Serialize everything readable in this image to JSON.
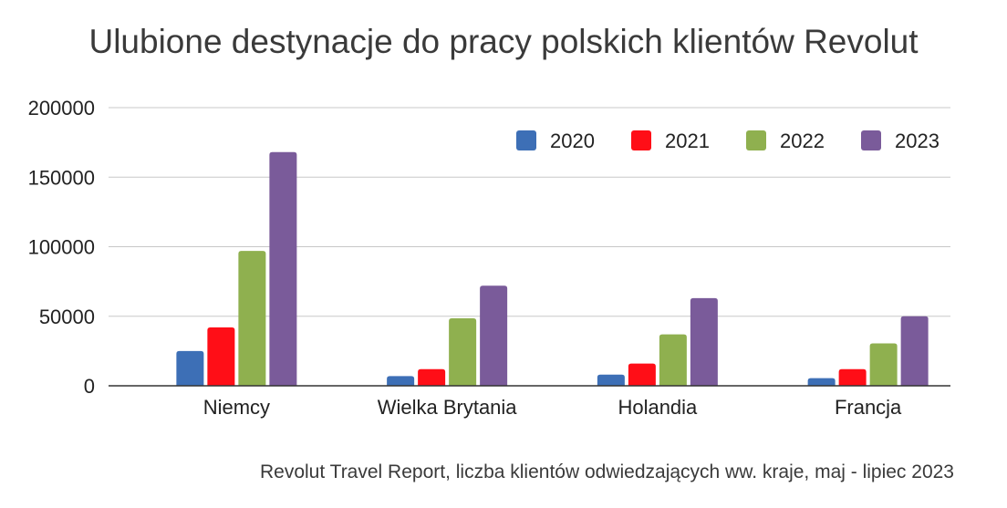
{
  "chart_data": {
    "type": "bar",
    "title": "Ulubione destynacje do pracy polskich klientów Revolut",
    "subtitle": "Revolut Travel Report, liczba klientów odwiedzających ww. kraje, maj - lipiec 2023",
    "xlabel": "",
    "ylabel": "",
    "categories": [
      "Niemcy",
      "Wielka Brytania",
      "Holandia",
      "Francja"
    ],
    "series": [
      {
        "name": "2020",
        "color": "#3d6fb6",
        "values": [
          25000,
          7000,
          8000,
          5500
        ]
      },
      {
        "name": "2021",
        "color": "#ff0e17",
        "values": [
          42000,
          12000,
          16000,
          12000
        ]
      },
      {
        "name": "2022",
        "color": "#8fb04f",
        "values": [
          97000,
          48500,
          37000,
          30500
        ]
      },
      {
        "name": "2023",
        "color": "#7a5b9a",
        "values": [
          168000,
          72000,
          63000,
          50000
        ]
      }
    ],
    "ylim": [
      0,
      200000
    ],
    "yticks": [
      "0",
      "50000",
      "100000",
      "150000",
      "200000"
    ],
    "grid": true,
    "legend": "top-right"
  }
}
